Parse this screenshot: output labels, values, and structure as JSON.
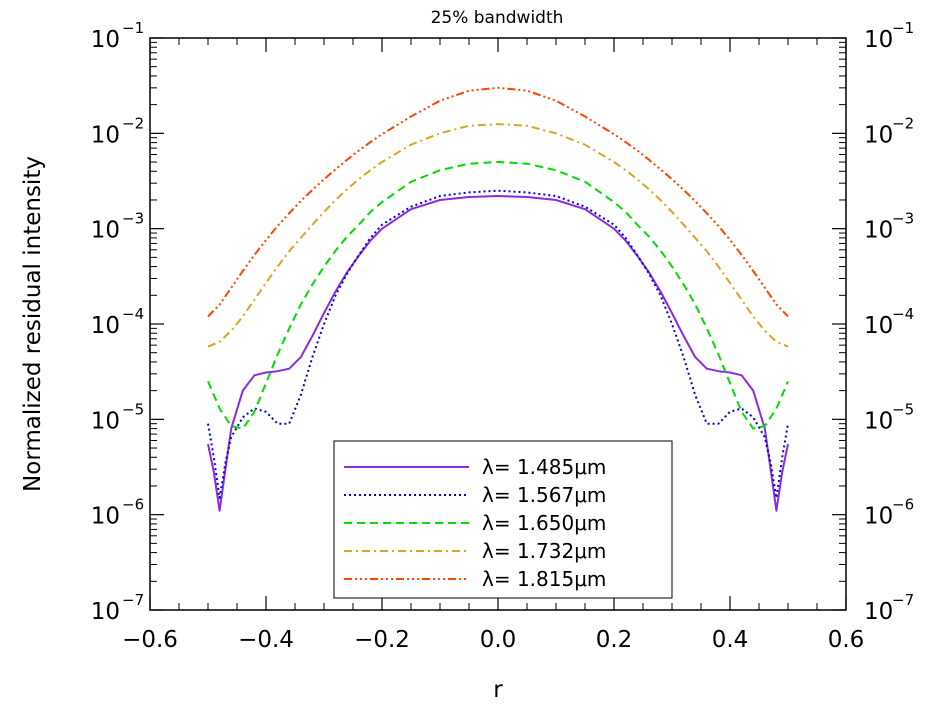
{
  "chart_data": {
    "type": "line",
    "title": "25% bandwidth",
    "xlabel": "r",
    "ylabel": "Normalized residual intensity",
    "xlim": [
      -0.6,
      0.6
    ],
    "ylim": [
      1e-07,
      0.1
    ],
    "yscale": "log",
    "x_ticks": [
      {
        "value": -0.6,
        "label": "−0.6"
      },
      {
        "value": -0.4,
        "label": "−0.4"
      },
      {
        "value": -0.2,
        "label": "−0.2"
      },
      {
        "value": 0.0,
        "label": "0.0"
      },
      {
        "value": 0.2,
        "label": "0.2"
      },
      {
        "value": 0.4,
        "label": "0.4"
      },
      {
        "value": 0.6,
        "label": "0.6"
      }
    ],
    "y_ticks": [
      {
        "value": 1e-07,
        "base": "10",
        "exp": "−7"
      },
      {
        "value": 1e-06,
        "base": "10",
        "exp": "−6"
      },
      {
        "value": 1e-05,
        "base": "10",
        "exp": "−5"
      },
      {
        "value": 0.0001,
        "base": "10",
        "exp": "−4"
      },
      {
        "value": 0.001,
        "base": "10",
        "exp": "−3"
      },
      {
        "value": 0.01,
        "base": "10",
        "exp": "−2"
      },
      {
        "value": 0.1,
        "base": "10",
        "exp": "−1"
      }
    ],
    "right_axis_labels": true,
    "grid": false,
    "legend_position": "bottom-center",
    "series": [
      {
        "name": "λ=  1.485μm",
        "color": "#8a2be2",
        "dash": "",
        "x": [
          -0.5,
          -0.49,
          -0.48,
          -0.47,
          -0.46,
          -0.44,
          -0.42,
          -0.4,
          -0.38,
          -0.36,
          -0.34,
          -0.32,
          -0.3,
          -0.28,
          -0.26,
          -0.24,
          -0.22,
          -0.2,
          -0.15,
          -0.1,
          -0.05,
          0.0,
          0.05,
          0.1,
          0.15,
          0.2,
          0.22,
          0.24,
          0.26,
          0.28,
          0.3,
          0.32,
          0.34,
          0.36,
          0.38,
          0.4,
          0.42,
          0.44,
          0.46,
          0.47,
          0.48,
          0.49,
          0.5
        ],
        "y": [
          5.5e-06,
          2.8e-06,
          1.1e-06,
          3e-06,
          8e-06,
          2e-05,
          2.9e-05,
          3.1e-05,
          3.2e-05,
          3.4e-05,
          4.5e-05,
          7.5e-05,
          0.00013,
          0.00022,
          0.00035,
          0.00052,
          0.00075,
          0.001,
          0.0016,
          0.002,
          0.00215,
          0.0022,
          0.00215,
          0.002,
          0.0016,
          0.001,
          0.00075,
          0.00052,
          0.00035,
          0.00022,
          0.00013,
          7.5e-05,
          4.5e-05,
          3.4e-05,
          3.2e-05,
          3.1e-05,
          2.9e-05,
          2e-05,
          8e-06,
          3e-06,
          1.1e-06,
          2.8e-06,
          5.5e-06
        ]
      },
      {
        "name": "λ=  1.567μm",
        "color": "#0000dd",
        "dash": "2,3",
        "x": [
          -0.5,
          -0.49,
          -0.48,
          -0.47,
          -0.46,
          -0.44,
          -0.42,
          -0.4,
          -0.38,
          -0.36,
          -0.34,
          -0.32,
          -0.3,
          -0.28,
          -0.26,
          -0.24,
          -0.22,
          -0.2,
          -0.15,
          -0.1,
          -0.05,
          0.0,
          0.05,
          0.1,
          0.15,
          0.2,
          0.22,
          0.24,
          0.26,
          0.28,
          0.3,
          0.32,
          0.34,
          0.36,
          0.38,
          0.4,
          0.42,
          0.44,
          0.46,
          0.47,
          0.48,
          0.49,
          0.5
        ],
        "y": [
          9e-06,
          4e-06,
          1.5e-06,
          3.5e-06,
          6.5e-06,
          1.05e-05,
          1.3e-05,
          1.2e-05,
          9e-06,
          9e-06,
          1.8e-05,
          4.5e-05,
          0.0001,
          0.0002,
          0.00034,
          0.00053,
          0.0008,
          0.0011,
          0.0017,
          0.0022,
          0.0024,
          0.0025,
          0.0024,
          0.0022,
          0.0017,
          0.0011,
          0.0008,
          0.00053,
          0.00034,
          0.0002,
          0.0001,
          4.5e-05,
          1.8e-05,
          9e-06,
          9e-06,
          1.2e-05,
          1.3e-05,
          1.05e-05,
          6.5e-06,
          3.5e-06,
          1.5e-06,
          4e-06,
          9e-06
        ]
      },
      {
        "name": "λ=  1.650μm",
        "color": "#00dd00",
        "dash": "8,5",
        "x": [
          -0.5,
          -0.48,
          -0.46,
          -0.44,
          -0.42,
          -0.4,
          -0.38,
          -0.36,
          -0.34,
          -0.32,
          -0.3,
          -0.28,
          -0.26,
          -0.24,
          -0.22,
          -0.2,
          -0.15,
          -0.1,
          -0.05,
          0.0,
          0.05,
          0.1,
          0.15,
          0.2,
          0.22,
          0.24,
          0.26,
          0.28,
          0.3,
          0.32,
          0.34,
          0.36,
          0.38,
          0.4,
          0.42,
          0.44,
          0.46,
          0.48,
          0.5
        ],
        "y": [
          2.5e-05,
          1.3e-05,
          8.5e-06,
          8e-06,
          1.2e-05,
          2.4e-05,
          4.8e-05,
          9e-05,
          0.00016,
          0.00026,
          0.0004,
          0.00059,
          0.00083,
          0.0011,
          0.0015,
          0.0019,
          0.0031,
          0.0041,
          0.0048,
          0.005,
          0.0048,
          0.0041,
          0.0031,
          0.0019,
          0.0015,
          0.0011,
          0.00083,
          0.00059,
          0.0004,
          0.00026,
          0.00016,
          9e-05,
          4.8e-05,
          2.4e-05,
          1.2e-05,
          8e-06,
          8.5e-06,
          1.3e-05,
          2.5e-05
        ]
      },
      {
        "name": "λ=  1.732μm",
        "color": "#daa520",
        "dash": "8,4,2,4",
        "x": [
          -0.5,
          -0.48,
          -0.46,
          -0.44,
          -0.42,
          -0.4,
          -0.38,
          -0.36,
          -0.34,
          -0.32,
          -0.3,
          -0.28,
          -0.26,
          -0.24,
          -0.22,
          -0.2,
          -0.15,
          -0.1,
          -0.05,
          0.0,
          0.05,
          0.1,
          0.15,
          0.2,
          0.22,
          0.24,
          0.26,
          0.28,
          0.3,
          0.32,
          0.34,
          0.36,
          0.38,
          0.4,
          0.42,
          0.44,
          0.46,
          0.48,
          0.5
        ],
        "y": [
          5.8e-05,
          6.5e-05,
          8.5e-05,
          0.00012,
          0.00018,
          0.00027,
          0.0004,
          0.00058,
          0.0008,
          0.0011,
          0.0015,
          0.002,
          0.0026,
          0.0033,
          0.0041,
          0.005,
          0.0076,
          0.01,
          0.012,
          0.0125,
          0.012,
          0.01,
          0.0076,
          0.005,
          0.0041,
          0.0033,
          0.0026,
          0.002,
          0.0015,
          0.0011,
          0.0008,
          0.00058,
          0.0004,
          0.00027,
          0.00018,
          0.00012,
          8.5e-05,
          6.5e-05,
          5.8e-05
        ]
      },
      {
        "name": "λ=  1.815μm",
        "color": "#ff4500",
        "dash": "8,3,2,3,2,3,2,3",
        "x": [
          -0.5,
          -0.48,
          -0.46,
          -0.44,
          -0.42,
          -0.4,
          -0.38,
          -0.36,
          -0.34,
          -0.32,
          -0.3,
          -0.28,
          -0.26,
          -0.24,
          -0.22,
          -0.2,
          -0.15,
          -0.1,
          -0.05,
          0.0,
          0.05,
          0.1,
          0.15,
          0.2,
          0.22,
          0.24,
          0.26,
          0.28,
          0.3,
          0.32,
          0.34,
          0.36,
          0.38,
          0.4,
          0.42,
          0.44,
          0.46,
          0.48,
          0.5
        ],
        "y": [
          0.00012,
          0.00016,
          0.00024,
          0.00036,
          0.00053,
          0.00076,
          0.00107,
          0.00145,
          0.00195,
          0.00255,
          0.0033,
          0.0042,
          0.0053,
          0.0066,
          0.0081,
          0.0098,
          0.015,
          0.022,
          0.028,
          0.03,
          0.028,
          0.022,
          0.015,
          0.0098,
          0.0081,
          0.0066,
          0.0053,
          0.0042,
          0.0033,
          0.00255,
          0.00195,
          0.00145,
          0.00107,
          0.00076,
          0.00053,
          0.00036,
          0.00024,
          0.00016,
          0.00012
        ]
      }
    ]
  }
}
